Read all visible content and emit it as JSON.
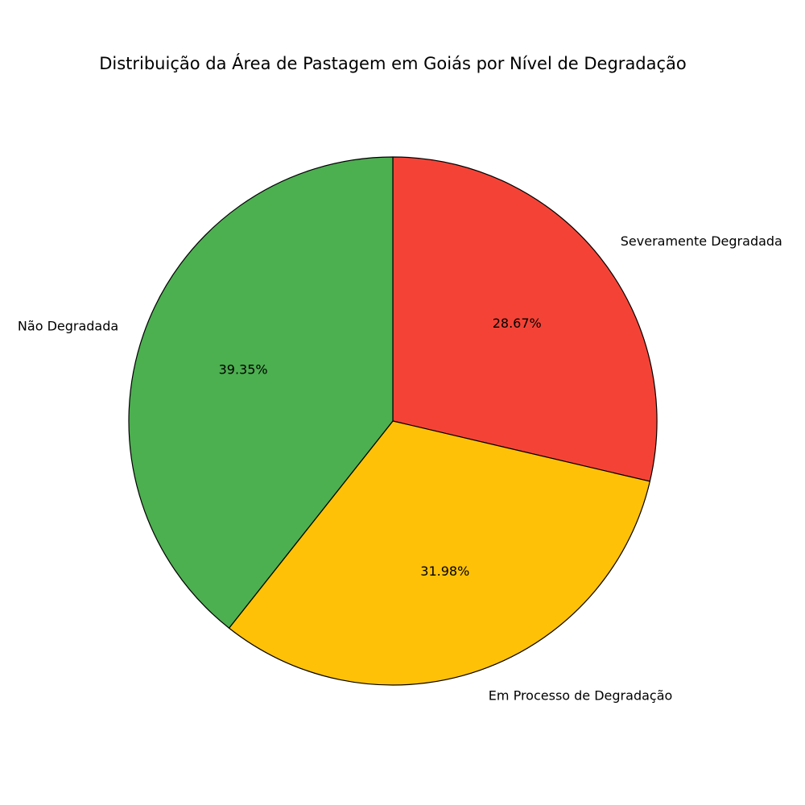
{
  "chart_data": {
    "type": "pie",
    "title": "Distribuição da Área de Pastagem em Goiás por Nível de Degradação",
    "categories": [
      "Severamente Degradada",
      "Em Processo de Degradação",
      "Não Degradada"
    ],
    "values": [
      28.67,
      31.98,
      39.35
    ],
    "percent_labels": [
      "28.67%",
      "31.98%",
      "39.35%"
    ],
    "colors": [
      "#f44336",
      "#ffc107",
      "#4caf50"
    ],
    "edge_color": "#000000",
    "start_angle_deg": 90,
    "direction": "clockwise",
    "legend": "none"
  }
}
